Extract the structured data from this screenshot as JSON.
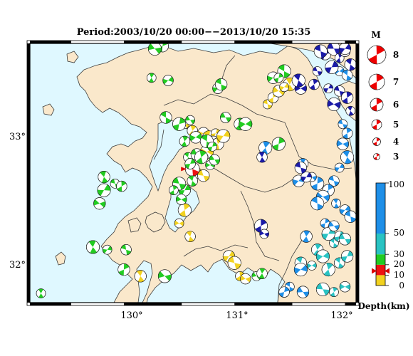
{
  "map": {
    "title": "Period:2003/10/20 00:00−−2013/10/20 15:35",
    "lon_labels": [
      "130°",
      "131°",
      "132°"
    ],
    "lat_labels": [
      "33°",
      "32°"
    ],
    "colors": {
      "sea": "#dff8ff",
      "land": "#fae8cb",
      "coast": "#3c3c3c",
      "border": "#000000"
    }
  },
  "magnitude_legend": {
    "title": "M",
    "levels": [
      "8",
      "7",
      "6",
      "5",
      "4",
      "3"
    ],
    "color": "#ee0000"
  },
  "depth_colorbar": {
    "label": "Depth(km)",
    "tick_labels": [
      "100",
      "50",
      "30",
      "20",
      "10",
      "0"
    ],
    "segments": [
      {
        "from": 0,
        "to": 10,
        "color": "#f2d21f"
      },
      {
        "from": 10,
        "to": 20,
        "color": "#ee1111"
      },
      {
        "from": 20,
        "to": 30,
        "color": "#22cc22"
      },
      {
        "from": 30,
        "to": 50,
        "color": "#29c3c3"
      },
      {
        "from": 50,
        "to": 100,
        "color": "#1e8fe8"
      },
      {
        "from": 100,
        "to": 120,
        "color": "#1a1aa8"
      }
    ],
    "marker_depth": 14,
    "marker_color": "#dd0000"
  },
  "chart_data": {
    "type": "scatter",
    "title": "Period:2003/10/20 00:00−−2013/10/20 15:35",
    "xlabel": "",
    "ylabel": "",
    "xlim": [
      129.15,
      132.1
    ],
    "ylim": [
      31.7,
      33.66
    ],
    "x_ticks": [
      130,
      131,
      132
    ],
    "y_ticks": [
      32,
      33
    ],
    "series": [
      {
        "depth_class": "shallow-yellow",
        "color": "#f2d21f",
        "points": [
          [
            130.55,
            33.05
          ],
          [
            130.62,
            33.0
          ],
          [
            130.72,
            32.98
          ],
          [
            130.77,
            32.95
          ],
          [
            130.83,
            32.98
          ],
          [
            130.81,
            32.92
          ],
          [
            130.85,
            32.9
          ],
          [
            130.75,
            32.84
          ],
          [
            130.72,
            32.8
          ],
          [
            130.66,
            32.68
          ],
          [
            130.72,
            32.66
          ],
          [
            130.55,
            32.4
          ],
          [
            130.5,
            32.3
          ],
          [
            130.6,
            32.2
          ],
          [
            130.95,
            32.05
          ],
          [
            131.0,
            32.0
          ],
          [
            131.05,
            31.9
          ],
          [
            131.1,
            31.88
          ],
          [
            130.15,
            31.9
          ],
          [
            130.9,
            32.96
          ],
          [
            131.3,
            33.2
          ],
          [
            131.35,
            33.25
          ],
          [
            131.4,
            33.3
          ],
          [
            131.5,
            33.35
          ],
          [
            131.45,
            33.33
          ]
        ]
      },
      {
        "depth_class": "mid-red",
        "color": "#ee1111",
        "points": [
          [
            130.62,
            32.71
          ]
        ]
      },
      {
        "depth_class": "mid-green",
        "color": "#22cc22",
        "points": [
          [
            130.35,
            33.64
          ],
          [
            130.28,
            33.62
          ],
          [
            130.25,
            33.4
          ],
          [
            130.4,
            33.38
          ],
          [
            130.38,
            33.1
          ],
          [
            130.5,
            33.05
          ],
          [
            130.6,
            33.08
          ],
          [
            130.55,
            32.92
          ],
          [
            130.65,
            32.95
          ],
          [
            130.75,
            32.92
          ],
          [
            130.8,
            32.88
          ],
          [
            130.92,
            33.1
          ],
          [
            131.05,
            33.05
          ],
          [
            131.1,
            33.05
          ],
          [
            130.58,
            32.8
          ],
          [
            130.6,
            32.75
          ],
          [
            130.66,
            32.82
          ],
          [
            130.7,
            32.8
          ],
          [
            130.78,
            32.74
          ],
          [
            130.62,
            32.62
          ],
          [
            130.55,
            32.55
          ],
          [
            130.5,
            32.6
          ],
          [
            130.45,
            32.55
          ],
          [
            130.52,
            32.48
          ],
          [
            129.82,
            32.65
          ],
          [
            129.82,
            32.55
          ],
          [
            129.92,
            32.6
          ],
          [
            129.98,
            32.58
          ],
          [
            129.78,
            32.45
          ],
          [
            129.72,
            32.12
          ],
          [
            129.85,
            32.1
          ],
          [
            130.02,
            32.1
          ],
          [
            130.0,
            31.95
          ],
          [
            130.37,
            31.9
          ],
          [
            129.25,
            31.77
          ],
          [
            130.85,
            33.32
          ],
          [
            130.88,
            33.35
          ],
          [
            131.4,
            32.9
          ],
          [
            131.2,
            31.9
          ],
          [
            131.25,
            31.92
          ],
          [
            131.35,
            33.4
          ],
          [
            131.45,
            33.45
          ],
          [
            131.4,
            33.4
          ],
          [
            130.82,
            32.78
          ]
        ]
      },
      {
        "depth_class": "deep-cyan",
        "color": "#29c3c3",
        "points": [
          [
            131.75,
            32.1
          ],
          [
            131.8,
            32.05
          ],
          [
            131.9,
            32.15
          ],
          [
            131.95,
            32.2
          ],
          [
            132.0,
            32.18
          ],
          [
            131.85,
            31.95
          ],
          [
            131.7,
            31.98
          ],
          [
            131.95,
            32.0
          ],
          [
            132.02,
            32.05
          ],
          [
            131.8,
            31.8
          ],
          [
            131.9,
            31.78
          ],
          [
            132.0,
            31.82
          ],
          [
            131.6,
            32.0
          ],
          [
            131.85,
            32.22
          ]
        ]
      },
      {
        "depth_class": "deep-blue",
        "color": "#1e8fe8",
        "points": [
          [
            131.98,
            33.05
          ],
          [
            132.02,
            32.98
          ],
          [
            131.98,
            32.9
          ],
          [
            132.02,
            32.8
          ],
          [
            131.95,
            32.72
          ],
          [
            131.9,
            32.62
          ],
          [
            131.85,
            32.55
          ],
          [
            131.8,
            32.5
          ],
          [
            131.92,
            32.45
          ],
          [
            132.0,
            32.4
          ],
          [
            132.05,
            32.35
          ],
          [
            131.75,
            32.6
          ],
          [
            131.7,
            32.65
          ],
          [
            131.62,
            32.75
          ],
          [
            131.58,
            32.62
          ],
          [
            131.75,
            32.45
          ],
          [
            131.82,
            32.3
          ],
          [
            131.9,
            32.28
          ],
          [
            131.65,
            32.2
          ],
          [
            131.6,
            31.95
          ],
          [
            131.5,
            31.82
          ],
          [
            131.45,
            31.78
          ],
          [
            131.62,
            31.78
          ],
          [
            131.28,
            32.87
          ],
          [
            131.95,
            33.45
          ],
          [
            132.02,
            33.42
          ]
        ]
      },
      {
        "depth_class": "very-deep-navy",
        "color": "#1a1aa8",
        "points": [
          [
            131.82,
            33.58
          ],
          [
            131.9,
            33.62
          ],
          [
            131.95,
            33.55
          ],
          [
            132.0,
            33.6
          ],
          [
            132.05,
            33.5
          ],
          [
            131.88,
            33.48
          ],
          [
            131.75,
            33.45
          ],
          [
            131.72,
            33.35
          ],
          [
            131.6,
            33.32
          ],
          [
            131.58,
            33.38
          ],
          [
            131.85,
            33.32
          ],
          [
            131.95,
            33.3
          ],
          [
            132.02,
            33.25
          ],
          [
            131.9,
            33.2
          ],
          [
            132.05,
            33.15
          ],
          [
            131.65,
            32.65
          ],
          [
            131.6,
            32.72
          ],
          [
            131.24,
            32.28
          ],
          [
            131.27,
            32.22
          ],
          [
            131.25,
            32.8
          ],
          [
            132.0,
            33.62
          ],
          [
            131.78,
            33.6
          ]
        ]
      }
    ]
  }
}
